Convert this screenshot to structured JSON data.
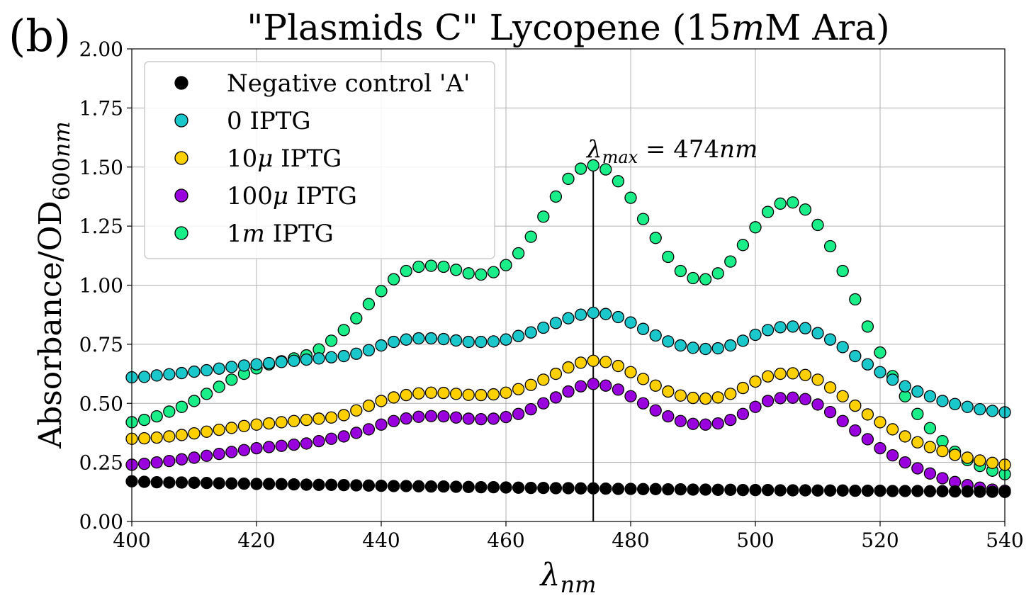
{
  "chart_data": {
    "type": "scatter",
    "panel_label": "(b)",
    "title": "\"Plasmids C\" Lycopene (15mM Ara)",
    "xlabel": "λ_nm",
    "ylabel": "Absorbance/OD_600nm",
    "xlim": [
      400,
      540
    ],
    "ylim": [
      0,
      2.0
    ],
    "x_ticks": [
      "400",
      "420",
      "440",
      "460",
      "480",
      "500",
      "520",
      "540"
    ],
    "y_ticks": [
      "0.00",
      "0.25",
      "0.50",
      "0.75",
      "1.00",
      "1.25",
      "1.50",
      "1.75",
      "2.00"
    ],
    "grid": true,
    "legend_position": "top-left",
    "annotation": {
      "text": "λmax = 474nm",
      "x": 474
    },
    "x": [
      400,
      402,
      404,
      406,
      408,
      410,
      412,
      414,
      416,
      418,
      420,
      422,
      424,
      426,
      428,
      430,
      432,
      434,
      436,
      438,
      440,
      442,
      444,
      446,
      448,
      450,
      452,
      454,
      456,
      458,
      460,
      462,
      464,
      466,
      468,
      470,
      472,
      474,
      476,
      478,
      480,
      482,
      484,
      486,
      488,
      490,
      492,
      494,
      496,
      498,
      500,
      502,
      504,
      506,
      508,
      510,
      512,
      514,
      516,
      518,
      520,
      522,
      524,
      526,
      528,
      530,
      532,
      534,
      536,
      538,
      540
    ],
    "series": [
      {
        "name": "Negative control 'A'",
        "color": "#000000",
        "values": [
          0.17,
          0.168,
          0.166,
          0.165,
          0.165,
          0.164,
          0.163,
          0.162,
          0.161,
          0.16,
          0.159,
          0.159,
          0.158,
          0.157,
          0.156,
          0.155,
          0.155,
          0.154,
          0.153,
          0.152,
          0.151,
          0.15,
          0.15,
          0.149,
          0.148,
          0.148,
          0.147,
          0.146,
          0.145,
          0.145,
          0.144,
          0.143,
          0.142,
          0.142,
          0.141,
          0.141,
          0.14,
          0.14,
          0.139,
          0.138,
          0.138,
          0.137,
          0.137,
          0.136,
          0.136,
          0.135,
          0.135,
          0.134,
          0.134,
          0.133,
          0.133,
          0.133,
          0.132,
          0.132,
          0.132,
          0.131,
          0.131,
          0.131,
          0.13,
          0.13,
          0.13,
          0.129,
          0.129,
          0.129,
          0.128,
          0.128,
          0.127,
          0.127,
          0.126,
          0.126,
          0.125
        ]
      },
      {
        "name": "0 IPTG",
        "color": "#1ac8cc",
        "values": [
          0.61,
          0.612,
          0.618,
          0.623,
          0.628,
          0.634,
          0.64,
          0.647,
          0.654,
          0.66,
          0.665,
          0.67,
          0.675,
          0.68,
          0.685,
          0.69,
          0.695,
          0.7,
          0.71,
          0.725,
          0.745,
          0.76,
          0.77,
          0.775,
          0.775,
          0.772,
          0.766,
          0.76,
          0.76,
          0.762,
          0.77,
          0.785,
          0.8,
          0.82,
          0.84,
          0.86,
          0.875,
          0.883,
          0.878,
          0.865,
          0.842,
          0.815,
          0.787,
          0.762,
          0.745,
          0.735,
          0.73,
          0.733,
          0.745,
          0.765,
          0.79,
          0.81,
          0.822,
          0.825,
          0.818,
          0.797,
          0.77,
          0.738,
          0.7,
          0.665,
          0.632,
          0.6,
          0.572,
          0.55,
          0.53,
          0.51,
          0.497,
          0.485,
          0.475,
          0.468,
          0.462
        ]
      },
      {
        "name": "10μ IPTG",
        "color": "#ffd000",
        "values": [
          0.35,
          0.352,
          0.355,
          0.36,
          0.366,
          0.373,
          0.38,
          0.388,
          0.396,
          0.404,
          0.41,
          0.415,
          0.42,
          0.425,
          0.43,
          0.435,
          0.44,
          0.45,
          0.47,
          0.49,
          0.51,
          0.525,
          0.535,
          0.542,
          0.545,
          0.544,
          0.54,
          0.536,
          0.535,
          0.538,
          0.545,
          0.56,
          0.578,
          0.6,
          0.625,
          0.652,
          0.672,
          0.68,
          0.675,
          0.658,
          0.632,
          0.603,
          0.575,
          0.55,
          0.533,
          0.523,
          0.52,
          0.525,
          0.54,
          0.565,
          0.592,
          0.614,
          0.625,
          0.627,
          0.62,
          0.6,
          0.567,
          0.53,
          0.49,
          0.453,
          0.42,
          0.39,
          0.36,
          0.335,
          0.315,
          0.298,
          0.282,
          0.27,
          0.258,
          0.248,
          0.24
        ]
      },
      {
        "name": "100μ IPTG",
        "color": "#9900dd",
        "values": [
          0.24,
          0.244,
          0.25,
          0.256,
          0.263,
          0.27,
          0.278,
          0.286,
          0.294,
          0.302,
          0.31,
          0.315,
          0.32,
          0.325,
          0.33,
          0.34,
          0.35,
          0.36,
          0.375,
          0.39,
          0.41,
          0.425,
          0.436,
          0.443,
          0.446,
          0.445,
          0.44,
          0.435,
          0.433,
          0.435,
          0.442,
          0.455,
          0.475,
          0.5,
          0.525,
          0.55,
          0.572,
          0.582,
          0.575,
          0.558,
          0.53,
          0.5,
          0.47,
          0.445,
          0.425,
          0.413,
          0.41,
          0.415,
          0.43,
          0.455,
          0.485,
          0.51,
          0.522,
          0.524,
          0.518,
          0.495,
          0.463,
          0.425,
          0.385,
          0.348,
          0.31,
          0.28,
          0.25,
          0.225,
          0.203,
          0.183,
          0.167,
          0.154,
          0.143,
          0.135,
          0.13
        ]
      },
      {
        "name": "1m IPTG",
        "color": "#1aee88",
        "values": [
          0.42,
          0.43,
          0.445,
          0.465,
          0.485,
          0.51,
          0.54,
          0.57,
          0.6,
          0.625,
          0.648,
          0.665,
          0.678,
          0.69,
          0.703,
          0.728,
          0.765,
          0.81,
          0.86,
          0.92,
          0.975,
          1.025,
          1.06,
          1.078,
          1.082,
          1.078,
          1.065,
          1.05,
          1.045,
          1.055,
          1.085,
          1.135,
          1.205,
          1.29,
          1.375,
          1.45,
          1.493,
          1.507,
          1.49,
          1.44,
          1.37,
          1.28,
          1.2,
          1.12,
          1.06,
          1.03,
          1.025,
          1.05,
          1.1,
          1.17,
          1.245,
          1.31,
          1.345,
          1.35,
          1.32,
          1.255,
          1.165,
          1.06,
          0.94,
          0.825,
          0.715,
          0.615,
          0.53,
          0.455,
          0.395,
          0.34,
          0.295,
          0.26,
          0.235,
          0.215,
          0.2
        ]
      }
    ]
  }
}
